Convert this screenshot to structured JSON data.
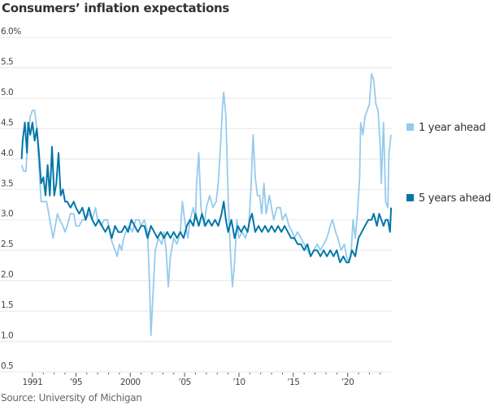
{
  "chart_data": {
    "type": "line",
    "title": "Consumers’ inflation expectations",
    "source": "Source: University of Michigan",
    "ylabel": "",
    "xlabel": "",
    "ylim": [
      0.5,
      6.0
    ],
    "xlim": [
      1989.8,
      2024.1
    ],
    "grid": true,
    "y_ticks": [
      {
        "value": 6.0,
        "label": "6.0%"
      },
      {
        "value": 5.5,
        "label": "5.5"
      },
      {
        "value": 5.0,
        "label": "5.0"
      },
      {
        "value": 4.5,
        "label": "4.5"
      },
      {
        "value": 4.0,
        "label": "4.0"
      },
      {
        "value": 3.5,
        "label": "3.5"
      },
      {
        "value": 3.0,
        "label": "3.0"
      },
      {
        "value": 2.5,
        "label": "2.5"
      },
      {
        "value": 2.0,
        "label": "2.0"
      },
      {
        "value": 1.5,
        "label": "1.5"
      },
      {
        "value": 1.0,
        "label": "1.0"
      },
      {
        "value": 0.5,
        "label": "0.5"
      }
    ],
    "x_ticks": [
      {
        "value": 1991,
        "label": "1991"
      },
      {
        "value": 1995,
        "label": "’95"
      },
      {
        "value": 2000,
        "label": "2000"
      },
      {
        "value": 2005,
        "label": "’05"
      },
      {
        "value": 2010,
        "label": "’10"
      },
      {
        "value": 2015,
        "label": "’15"
      },
      {
        "value": 2020,
        "label": "’20"
      }
    ],
    "minor_x_ticks_from": 1991,
    "minor_x_ticks_to": 2023,
    "legend_position": "right",
    "series": [
      {
        "name": "1 year ahead",
        "color": "#94cbee",
        "points": [
          [
            1990.0,
            3.9
          ],
          [
            1990.2,
            3.8
          ],
          [
            1990.4,
            3.8
          ],
          [
            1990.6,
            4.4
          ],
          [
            1990.8,
            4.7
          ],
          [
            1991.0,
            4.8
          ],
          [
            1991.2,
            4.8
          ],
          [
            1991.4,
            4.5
          ],
          [
            1991.6,
            3.9
          ],
          [
            1991.8,
            3.3
          ],
          [
            1992.0,
            3.3
          ],
          [
            1992.3,
            3.3
          ],
          [
            1992.5,
            3.1
          ],
          [
            1992.7,
            2.9
          ],
          [
            1992.9,
            2.7
          ],
          [
            1993.1,
            2.9
          ],
          [
            1993.3,
            3.1
          ],
          [
            1993.5,
            3.0
          ],
          [
            1993.8,
            2.9
          ],
          [
            1994.0,
            2.8
          ],
          [
            1994.2,
            2.9
          ],
          [
            1994.5,
            3.1
          ],
          [
            1994.8,
            3.1
          ],
          [
            1995.0,
            2.9
          ],
          [
            1995.3,
            2.9
          ],
          [
            1995.6,
            3.0
          ],
          [
            1995.9,
            3.0
          ],
          [
            1996.2,
            3.1
          ],
          [
            1996.5,
            3.0
          ],
          [
            1996.8,
            3.2
          ],
          [
            1997.0,
            3.0
          ],
          [
            1997.3,
            2.9
          ],
          [
            1997.6,
            3.0
          ],
          [
            1997.9,
            3.0
          ],
          [
            1998.2,
            2.7
          ],
          [
            1998.4,
            2.6
          ],
          [
            1998.6,
            2.5
          ],
          [
            1998.8,
            2.4
          ],
          [
            1999.0,
            2.6
          ],
          [
            1999.2,
            2.5
          ],
          [
            1999.4,
            2.7
          ],
          [
            1999.6,
            2.8
          ],
          [
            1999.9,
            2.9
          ],
          [
            2000.2,
            2.8
          ],
          [
            2000.5,
            3.0
          ],
          [
            2000.8,
            3.0
          ],
          [
            2001.0,
            2.9
          ],
          [
            2001.3,
            3.0
          ],
          [
            2001.6,
            2.8
          ],
          [
            2001.8,
            1.8
          ],
          [
            2001.9,
            1.1
          ],
          [
            2002.1,
            1.8
          ],
          [
            2002.3,
            2.5
          ],
          [
            2002.6,
            2.7
          ],
          [
            2002.9,
            2.6
          ],
          [
            2003.1,
            2.8
          ],
          [
            2003.3,
            2.5
          ],
          [
            2003.5,
            1.9
          ],
          [
            2003.7,
            2.4
          ],
          [
            2004.0,
            2.7
          ],
          [
            2004.3,
            2.6
          ],
          [
            2004.6,
            2.8
          ],
          [
            2004.8,
            3.3
          ],
          [
            2005.0,
            3.0
          ],
          [
            2005.3,
            2.7
          ],
          [
            2005.5,
            3.0
          ],
          [
            2005.8,
            3.2
          ],
          [
            2006.0,
            3.0
          ],
          [
            2006.1,
            3.6
          ],
          [
            2006.3,
            4.1
          ],
          [
            2006.5,
            3.2
          ],
          [
            2006.8,
            2.9
          ],
          [
            2007.0,
            3.2
          ],
          [
            2007.3,
            3.4
          ],
          [
            2007.6,
            3.2
          ],
          [
            2007.9,
            3.3
          ],
          [
            2008.1,
            3.6
          ],
          [
            2008.3,
            4.2
          ],
          [
            2008.5,
            4.9
          ],
          [
            2008.6,
            5.1
          ],
          [
            2008.8,
            4.7
          ],
          [
            2009.0,
            3.4
          ],
          [
            2009.2,
            2.5
          ],
          [
            2009.4,
            1.9
          ],
          [
            2009.6,
            2.3
          ],
          [
            2009.8,
            3.0
          ],
          [
            2010.0,
            2.7
          ],
          [
            2010.3,
            2.8
          ],
          [
            2010.6,
            2.7
          ],
          [
            2010.9,
            2.9
          ],
          [
            2011.1,
            3.5
          ],
          [
            2011.3,
            4.4
          ],
          [
            2011.5,
            3.7
          ],
          [
            2011.7,
            3.4
          ],
          [
            2011.9,
            3.4
          ],
          [
            2012.1,
            3.1
          ],
          [
            2012.3,
            3.6
          ],
          [
            2012.5,
            3.1
          ],
          [
            2012.8,
            3.4
          ],
          [
            2013.0,
            3.2
          ],
          [
            2013.2,
            3.0
          ],
          [
            2013.5,
            3.2
          ],
          [
            2013.8,
            3.2
          ],
          [
            2014.0,
            3.0
          ],
          [
            2014.3,
            3.1
          ],
          [
            2014.6,
            2.9
          ],
          [
            2014.9,
            2.8
          ],
          [
            2015.1,
            2.7
          ],
          [
            2015.4,
            2.8
          ],
          [
            2015.7,
            2.7
          ],
          [
            2016.0,
            2.6
          ],
          [
            2016.3,
            2.5
          ],
          [
            2016.6,
            2.4
          ],
          [
            2016.9,
            2.5
          ],
          [
            2017.2,
            2.6
          ],
          [
            2017.5,
            2.5
          ],
          [
            2017.8,
            2.6
          ],
          [
            2018.1,
            2.7
          ],
          [
            2018.4,
            2.9
          ],
          [
            2018.6,
            3.0
          ],
          [
            2018.9,
            2.8
          ],
          [
            2019.1,
            2.7
          ],
          [
            2019.4,
            2.5
          ],
          [
            2019.7,
            2.6
          ],
          [
            2019.9,
            2.4
          ],
          [
            2020.1,
            2.3
          ],
          [
            2020.3,
            2.4
          ],
          [
            2020.5,
            3.0
          ],
          [
            2020.7,
            2.7
          ],
          [
            2020.9,
            3.1
          ],
          [
            2021.1,
            3.7
          ],
          [
            2021.2,
            4.6
          ],
          [
            2021.4,
            4.4
          ],
          [
            2021.6,
            4.7
          ],
          [
            2021.8,
            4.8
          ],
          [
            2022.0,
            4.9
          ],
          [
            2022.2,
            5.4
          ],
          [
            2022.4,
            5.3
          ],
          [
            2022.6,
            4.9
          ],
          [
            2022.8,
            4.8
          ],
          [
            2023.0,
            4.2
          ],
          [
            2023.1,
            3.6
          ],
          [
            2023.3,
            4.6
          ],
          [
            2023.5,
            3.3
          ],
          [
            2023.7,
            3.2
          ],
          [
            2023.8,
            4.1
          ],
          [
            2024.0,
            4.4
          ]
        ]
      },
      {
        "name": "5 years ahead",
        "color": "#0176a8",
        "points": [
          [
            1990.0,
            4.0
          ],
          [
            1990.1,
            4.3
          ],
          [
            1990.3,
            4.6
          ],
          [
            1990.5,
            4.1
          ],
          [
            1990.6,
            4.6
          ],
          [
            1990.8,
            4.4
          ],
          [
            1991.0,
            4.6
          ],
          [
            1991.2,
            4.3
          ],
          [
            1991.4,
            4.5
          ],
          [
            1991.6,
            4.1
          ],
          [
            1991.8,
            3.6
          ],
          [
            1992.0,
            3.7
          ],
          [
            1992.2,
            3.4
          ],
          [
            1992.4,
            3.9
          ],
          [
            1992.6,
            3.4
          ],
          [
            1992.8,
            4.2
          ],
          [
            1993.0,
            3.4
          ],
          [
            1993.2,
            3.6
          ],
          [
            1993.4,
            4.1
          ],
          [
            1993.6,
            3.4
          ],
          [
            1993.8,
            3.5
          ],
          [
            1994.0,
            3.3
          ],
          [
            1994.2,
            3.3
          ],
          [
            1994.5,
            3.2
          ],
          [
            1994.8,
            3.3
          ],
          [
            1995.0,
            3.2
          ],
          [
            1995.3,
            3.1
          ],
          [
            1995.6,
            3.2
          ],
          [
            1995.9,
            3.0
          ],
          [
            1996.2,
            3.2
          ],
          [
            1996.5,
            3.0
          ],
          [
            1996.8,
            2.9
          ],
          [
            1997.1,
            3.0
          ],
          [
            1997.4,
            2.9
          ],
          [
            1997.7,
            2.8
          ],
          [
            1998.0,
            2.9
          ],
          [
            1998.3,
            2.7
          ],
          [
            1998.6,
            2.9
          ],
          [
            1998.9,
            2.8
          ],
          [
            1999.2,
            2.8
          ],
          [
            1999.5,
            2.9
          ],
          [
            1999.8,
            2.8
          ],
          [
            2000.1,
            3.0
          ],
          [
            2000.4,
            2.9
          ],
          [
            2000.7,
            2.8
          ],
          [
            2001.0,
            2.9
          ],
          [
            2001.3,
            2.9
          ],
          [
            2001.6,
            2.7
          ],
          [
            2001.9,
            2.9
          ],
          [
            2002.2,
            2.8
          ],
          [
            2002.5,
            2.7
          ],
          [
            2002.8,
            2.8
          ],
          [
            2003.1,
            2.7
          ],
          [
            2003.4,
            2.8
          ],
          [
            2003.7,
            2.7
          ],
          [
            2004.0,
            2.8
          ],
          [
            2004.3,
            2.7
          ],
          [
            2004.6,
            2.8
          ],
          [
            2004.9,
            2.7
          ],
          [
            2005.2,
            2.9
          ],
          [
            2005.5,
            3.0
          ],
          [
            2005.8,
            2.9
          ],
          [
            2006.0,
            3.1
          ],
          [
            2006.3,
            2.9
          ],
          [
            2006.6,
            3.1
          ],
          [
            2006.9,
            2.9
          ],
          [
            2007.2,
            3.0
          ],
          [
            2007.5,
            2.9
          ],
          [
            2007.8,
            3.0
          ],
          [
            2008.1,
            2.9
          ],
          [
            2008.4,
            3.1
          ],
          [
            2008.6,
            3.3
          ],
          [
            2008.8,
            3.0
          ],
          [
            2009.0,
            2.8
          ],
          [
            2009.3,
            3.0
          ],
          [
            2009.6,
            2.7
          ],
          [
            2009.9,
            2.9
          ],
          [
            2010.2,
            2.8
          ],
          [
            2010.5,
            2.9
          ],
          [
            2010.8,
            2.8
          ],
          [
            2011.0,
            3.0
          ],
          [
            2011.2,
            3.1
          ],
          [
            2011.5,
            2.8
          ],
          [
            2011.8,
            2.9
          ],
          [
            2012.1,
            2.8
          ],
          [
            2012.4,
            2.9
          ],
          [
            2012.7,
            2.8
          ],
          [
            2013.0,
            2.9
          ],
          [
            2013.3,
            2.8
          ],
          [
            2013.6,
            2.9
          ],
          [
            2013.9,
            2.8
          ],
          [
            2014.2,
            2.9
          ],
          [
            2014.5,
            2.8
          ],
          [
            2014.8,
            2.7
          ],
          [
            2015.1,
            2.7
          ],
          [
            2015.4,
            2.6
          ],
          [
            2015.7,
            2.6
          ],
          [
            2016.0,
            2.5
          ],
          [
            2016.3,
            2.6
          ],
          [
            2016.6,
            2.4
          ],
          [
            2016.9,
            2.5
          ],
          [
            2017.2,
            2.5
          ],
          [
            2017.5,
            2.4
          ],
          [
            2017.8,
            2.5
          ],
          [
            2018.1,
            2.4
          ],
          [
            2018.4,
            2.5
          ],
          [
            2018.7,
            2.4
          ],
          [
            2019.0,
            2.5
          ],
          [
            2019.3,
            2.3
          ],
          [
            2019.6,
            2.4
          ],
          [
            2019.9,
            2.3
          ],
          [
            2020.1,
            2.3
          ],
          [
            2020.4,
            2.5
          ],
          [
            2020.7,
            2.4
          ],
          [
            2021.0,
            2.7
          ],
          [
            2021.3,
            2.8
          ],
          [
            2021.6,
            2.9
          ],
          [
            2021.9,
            3.0
          ],
          [
            2022.2,
            3.0
          ],
          [
            2022.4,
            3.1
          ],
          [
            2022.7,
            2.9
          ],
          [
            2022.9,
            3.1
          ],
          [
            2023.1,
            3.0
          ],
          [
            2023.3,
            2.9
          ],
          [
            2023.5,
            3.0
          ],
          [
            2023.7,
            3.0
          ],
          [
            2023.9,
            2.8
          ],
          [
            2024.0,
            3.2
          ]
        ]
      }
    ]
  }
}
